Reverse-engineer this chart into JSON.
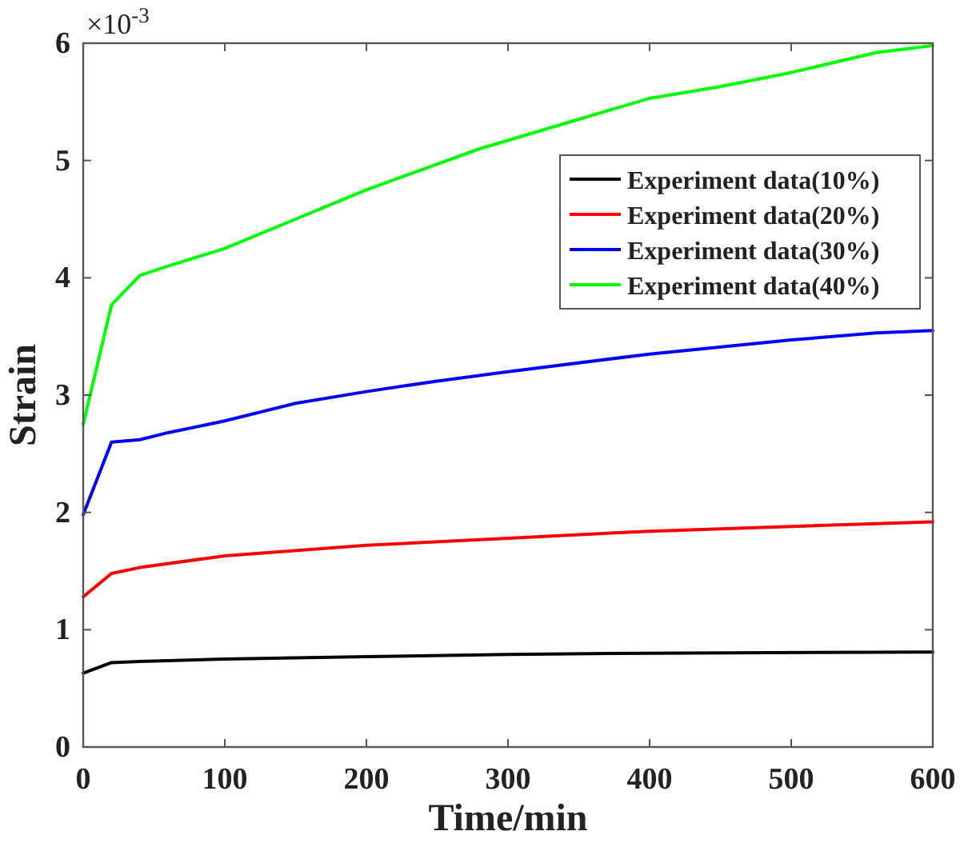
{
  "chart_data": {
    "type": "line",
    "xlabel": "Time/min",
    "ylabel": "Strain",
    "annotations": [
      "×10$^{-3}$"
    ],
    "xlim": [
      0,
      600
    ],
    "xticks": [
      0,
      100,
      200,
      300,
      400,
      500,
      600
    ],
    "ylim": [
      0,
      6
    ],
    "yticks": [
      0,
      1,
      2,
      3,
      4,
      5,
      6
    ],
    "grid": false,
    "legend": "top right",
    "marker": "none",
    "line_style": "solid",
    "series": [
      {
        "name": "Experiment data(10%)",
        "color": "#000000",
        "x": [
          0,
          20,
          40,
          100,
          200,
          300,
          400,
          600
        ],
        "values": [
          0.63,
          0.72,
          0.73,
          0.75,
          0.77,
          0.79,
          0.8,
          0.81
        ]
      },
      {
        "name": "Experiment data(20%)",
        "color": "#ff0000",
        "x": [
          0,
          20,
          40,
          100,
          200,
          300,
          400,
          500,
          600
        ],
        "values": [
          1.28,
          1.48,
          1.53,
          1.63,
          1.72,
          1.78,
          1.84,
          1.88,
          1.92
        ]
      },
      {
        "name": "Experiment data(30%)",
        "color": "#0000ff",
        "x": [
          0,
          20,
          40,
          60,
          100,
          150,
          200,
          250,
          300,
          400,
          500,
          560,
          600
        ],
        "values": [
          1.98,
          2.6,
          2.62,
          2.68,
          2.78,
          2.93,
          3.03,
          3.12,
          3.2,
          3.35,
          3.47,
          3.53,
          3.55
        ]
      },
      {
        "name": "Experiment data(40%)",
        "color": "#00ff00",
        "x": [
          0,
          20,
          40,
          60,
          100,
          150,
          200,
          280,
          400,
          450,
          500,
          560,
          600
        ],
        "values": [
          2.75,
          3.77,
          4.02,
          4.1,
          4.25,
          4.5,
          4.75,
          5.1,
          5.53,
          5.63,
          5.75,
          5.92,
          5.98
        ]
      }
    ]
  }
}
